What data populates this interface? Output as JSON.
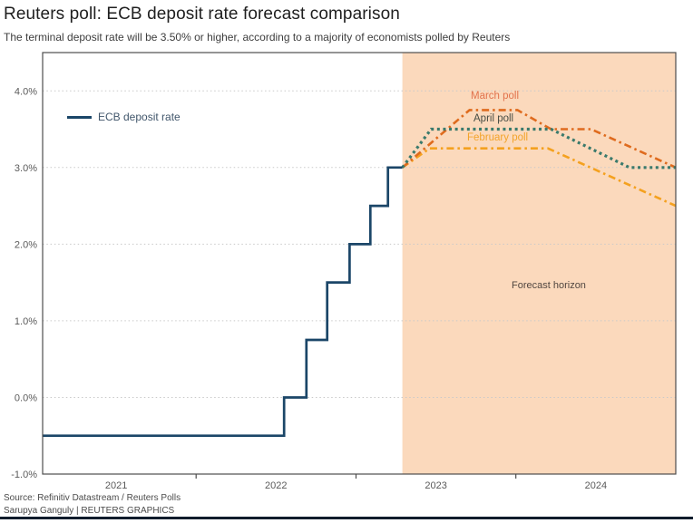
{
  "footer": {
    "source": "Source: Refinitiv Datastream / Reuters Polls",
    "credit": "Sarupya Ganguly | REUTERS GRAPHICS"
  },
  "colors": {
    "forecast_band": "#fbd9bc",
    "grid": "#c9c9c9",
    "plot_border": "#4d4d4d",
    "axis_text": "#5a5a5a",
    "title_text": "#1f1f1f",
    "subtitle_text": "#3d3d3d",
    "footer_text": "#4c4c4c",
    "bottom_rule": "#0e1c2c",
    "forecast_horizon_text": "#514640",
    "legend_text": "#41566b"
  },
  "chart_data": {
    "type": "line",
    "title": "Reuters poll: ECB deposit rate forecast comparison",
    "subtitle": "The terminal deposit rate will be 3.50% or higher, according to a majority of economists polled by Reuters",
    "xlabel": "",
    "ylabel": "",
    "x_domain": [
      2021.04,
      2025.0
    ],
    "y_domain": [
      -1.0,
      4.5
    ],
    "grid": "dotted-horizontal",
    "legend_position": "top-left-inside",
    "y_ticks": [
      {
        "v": 4.0,
        "label": "4.0%"
      },
      {
        "v": 3.0,
        "label": "3.0%"
      },
      {
        "v": 2.0,
        "label": "2.0%"
      },
      {
        "v": 1.0,
        "label": "1.0%"
      },
      {
        "v": 0.0,
        "label": "0.0%"
      },
      {
        "v": -1.0,
        "label": "-1.0%"
      }
    ],
    "x_ticks": [
      {
        "t": 2021.5,
        "label": "2021"
      },
      {
        "t": 2022.5,
        "label": "2022"
      },
      {
        "t": 2023.5,
        "label": "2023"
      },
      {
        "t": 2024.5,
        "label": "2024"
      }
    ],
    "x_tick_marks": [
      2022,
      2023,
      2024
    ],
    "forecast_band": {
      "start": 2023.29,
      "end": 2025.0
    },
    "annotations": {
      "forecast_horizon": "Forecast horizon"
    },
    "series": [
      {
        "name": "ECB deposit rate",
        "color": "#1b4668",
        "label_color": "#41566b",
        "style": "solid",
        "points": [
          [
            2021.04,
            -0.5
          ],
          [
            2022.55,
            -0.5
          ],
          [
            2022.55,
            0.0
          ],
          [
            2022.69,
            0.0
          ],
          [
            2022.69,
            0.75
          ],
          [
            2022.82,
            0.75
          ],
          [
            2022.82,
            1.5
          ],
          [
            2022.96,
            1.5
          ],
          [
            2022.96,
            2.0
          ],
          [
            2023.09,
            2.0
          ],
          [
            2023.09,
            2.5
          ],
          [
            2023.2,
            2.5
          ],
          [
            2023.2,
            3.0
          ],
          [
            2023.29,
            3.0
          ]
        ]
      },
      {
        "name": "February poll",
        "color": "#f4a11f",
        "label_color": "#f3a42c",
        "style": "dashdot",
        "points": [
          [
            2023.29,
            3.0
          ],
          [
            2023.46,
            3.25
          ],
          [
            2024.2,
            3.25
          ],
          [
            2025.0,
            2.5
          ]
        ]
      },
      {
        "name": "March poll",
        "color": "#df6b1e",
        "label_color": "#e2734d",
        "style": "dashdot",
        "points": [
          [
            2023.29,
            3.0
          ],
          [
            2023.71,
            3.75
          ],
          [
            2024.01,
            3.75
          ],
          [
            2024.22,
            3.5
          ],
          [
            2024.47,
            3.5
          ],
          [
            2025.0,
            3.0
          ]
        ]
      },
      {
        "name": "April poll",
        "color": "#3a7a6c",
        "label_color": "#474d45",
        "style": "dotted",
        "points": [
          [
            2023.29,
            3.0
          ],
          [
            2023.47,
            3.5
          ],
          [
            2024.22,
            3.5
          ],
          [
            2024.71,
            3.0
          ],
          [
            2025.0,
            3.0
          ]
        ]
      }
    ]
  }
}
